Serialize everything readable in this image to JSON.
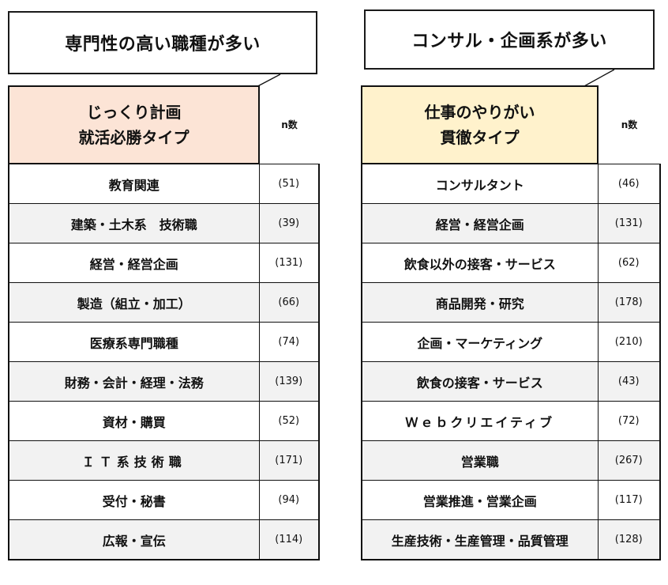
{
  "left": {
    "callout": "専門性の高い職種が多い",
    "type_line1": "じっくり計画",
    "type_line2": "就活必勝タイプ",
    "header_color": "#fce4d6",
    "n_label": "n数",
    "rows": [
      {
        "category": "教育関連",
        "n": "(51)"
      },
      {
        "category": "建築・土木系　技術職",
        "n": "(39)"
      },
      {
        "category": "経営・経営企画",
        "n": "(131)"
      },
      {
        "category": "製造（組立・加工）",
        "n": "(66)"
      },
      {
        "category": "医療系専門職種",
        "n": "(74)"
      },
      {
        "category": "財務・会計・経理・法務",
        "n": "(139)"
      },
      {
        "category": "資材・購買",
        "n": "(52)"
      },
      {
        "category": "ＩＴ系技術職",
        "n": "(171)"
      },
      {
        "category": "受付・秘書",
        "n": "(94)"
      },
      {
        "category": "広報・宣伝",
        "n": "(114)"
      }
    ]
  },
  "right": {
    "callout": "コンサル・企画系が多い",
    "type_line1": "仕事のやりがい",
    "type_line2": "貫徹タイプ",
    "header_color": "#fff2cc",
    "n_label": "n数",
    "rows": [
      {
        "category": "コンサルタント",
        "n": "(46)"
      },
      {
        "category": "経営・経営企画",
        "n": "(131)"
      },
      {
        "category": "飲食以外の接客・サービス",
        "n": "(62)"
      },
      {
        "category": "商品開発・研究",
        "n": "(178)"
      },
      {
        "category": "企画・マーケティング",
        "n": "(210)"
      },
      {
        "category": "飲食の接客・サービス",
        "n": "(43)"
      },
      {
        "category": "Ｗｅｂクリエイティブ",
        "n": "(72)"
      },
      {
        "category": "営業職",
        "n": "(267)"
      },
      {
        "category": "営業推進・営業企画",
        "n": "(117)"
      },
      {
        "category": "生産技術・生産管理・品質管理",
        "n": "(128)"
      }
    ]
  }
}
